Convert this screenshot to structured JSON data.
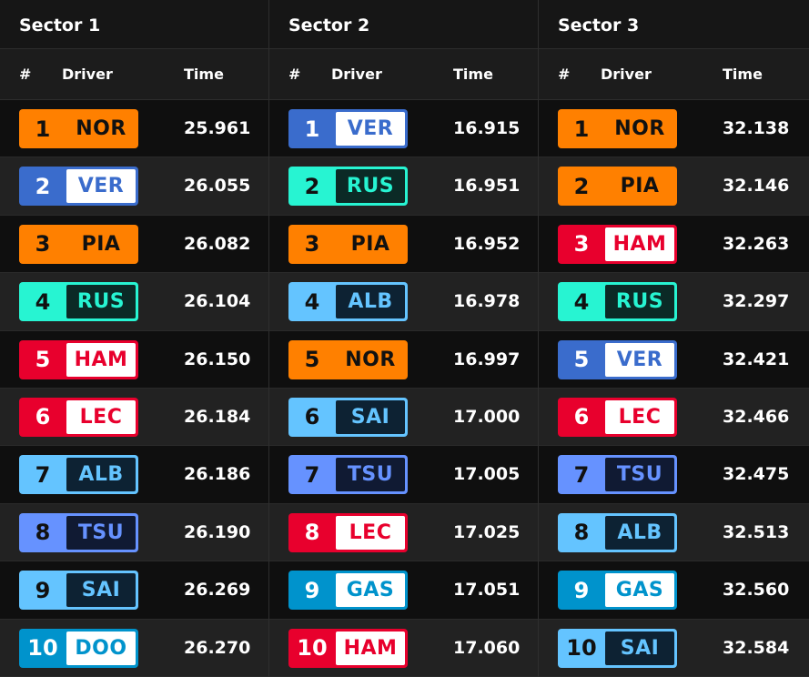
{
  "team_colors": {
    "NOR": {
      "bg": "#ff8000",
      "fg": "#111111",
      "inner": "#ff8000",
      "innerFg": "#111111",
      "posFg": "#111111"
    },
    "PIA": {
      "bg": "#ff8000",
      "fg": "#111111",
      "inner": "#ff8000",
      "innerFg": "#111111",
      "posFg": "#111111"
    },
    "VER": {
      "bg": "#3a6ccc",
      "fg": "#ffffff",
      "inner": "#ffffff",
      "innerFg": "#3a6ccc",
      "posFg": "#ffffff"
    },
    "RUS": {
      "bg": "#27f4d2",
      "fg": "#111111",
      "inner": "#0b2a26",
      "innerFg": "#27f4d2",
      "posFg": "#111111"
    },
    "HAM": {
      "bg": "#e8002d",
      "fg": "#ffffff",
      "inner": "#ffffff",
      "innerFg": "#e8002d",
      "posFg": "#ffffff"
    },
    "LEC": {
      "bg": "#e8002d",
      "fg": "#ffffff",
      "inner": "#ffffff",
      "innerFg": "#e8002d",
      "posFg": "#ffffff"
    },
    "ALB": {
      "bg": "#64c4ff",
      "fg": "#111111",
      "inner": "#0d2233",
      "innerFg": "#64c4ff",
      "posFg": "#111111"
    },
    "SAI": {
      "bg": "#64c4ff",
      "fg": "#111111",
      "inner": "#0d2233",
      "innerFg": "#64c4ff",
      "posFg": "#111111"
    },
    "TSU": {
      "bg": "#6692ff",
      "fg": "#111111",
      "inner": "#101a33",
      "innerFg": "#6692ff",
      "posFg": "#111111"
    },
    "GAS": {
      "bg": "#0093cc",
      "fg": "#ffffff",
      "inner": "#ffffff",
      "innerFg": "#0093cc",
      "posFg": "#ffffff"
    },
    "DOO": {
      "bg": "#0093cc",
      "fg": "#ffffff",
      "inner": "#ffffff",
      "innerFg": "#0093cc",
      "posFg": "#ffffff"
    }
  },
  "headers": {
    "num": "#",
    "driver": "Driver",
    "time": "Time"
  },
  "sectors": [
    {
      "title": "Sector 1",
      "rows": [
        {
          "pos": "1",
          "driver": "NOR",
          "time": "25.961"
        },
        {
          "pos": "2",
          "driver": "VER",
          "time": "26.055"
        },
        {
          "pos": "3",
          "driver": "PIA",
          "time": "26.082"
        },
        {
          "pos": "4",
          "driver": "RUS",
          "time": "26.104"
        },
        {
          "pos": "5",
          "driver": "HAM",
          "time": "26.150"
        },
        {
          "pos": "6",
          "driver": "LEC",
          "time": "26.184"
        },
        {
          "pos": "7",
          "driver": "ALB",
          "time": "26.186"
        },
        {
          "pos": "8",
          "driver": "TSU",
          "time": "26.190"
        },
        {
          "pos": "9",
          "driver": "SAI",
          "time": "26.269"
        },
        {
          "pos": "10",
          "driver": "DOO",
          "time": "26.270"
        }
      ]
    },
    {
      "title": "Sector 2",
      "rows": [
        {
          "pos": "1",
          "driver": "VER",
          "time": "16.915"
        },
        {
          "pos": "2",
          "driver": "RUS",
          "time": "16.951"
        },
        {
          "pos": "3",
          "driver": "PIA",
          "time": "16.952"
        },
        {
          "pos": "4",
          "driver": "ALB",
          "time": "16.978"
        },
        {
          "pos": "5",
          "driver": "NOR",
          "time": "16.997"
        },
        {
          "pos": "6",
          "driver": "SAI",
          "time": "17.000"
        },
        {
          "pos": "7",
          "driver": "TSU",
          "time": "17.005"
        },
        {
          "pos": "8",
          "driver": "LEC",
          "time": "17.025"
        },
        {
          "pos": "9",
          "driver": "GAS",
          "time": "17.051"
        },
        {
          "pos": "10",
          "driver": "HAM",
          "time": "17.060"
        }
      ]
    },
    {
      "title": "Sector 3",
      "rows": [
        {
          "pos": "1",
          "driver": "NOR",
          "time": "32.138"
        },
        {
          "pos": "2",
          "driver": "PIA",
          "time": "32.146"
        },
        {
          "pos": "3",
          "driver": "HAM",
          "time": "32.263"
        },
        {
          "pos": "4",
          "driver": "RUS",
          "time": "32.297"
        },
        {
          "pos": "5",
          "driver": "VER",
          "time": "32.421"
        },
        {
          "pos": "6",
          "driver": "LEC",
          "time": "32.466"
        },
        {
          "pos": "7",
          "driver": "TSU",
          "time": "32.475"
        },
        {
          "pos": "8",
          "driver": "ALB",
          "time": "32.513"
        },
        {
          "pos": "9",
          "driver": "GAS",
          "time": "32.560"
        },
        {
          "pos": "10",
          "driver": "SAI",
          "time": "32.584"
        }
      ]
    }
  ]
}
